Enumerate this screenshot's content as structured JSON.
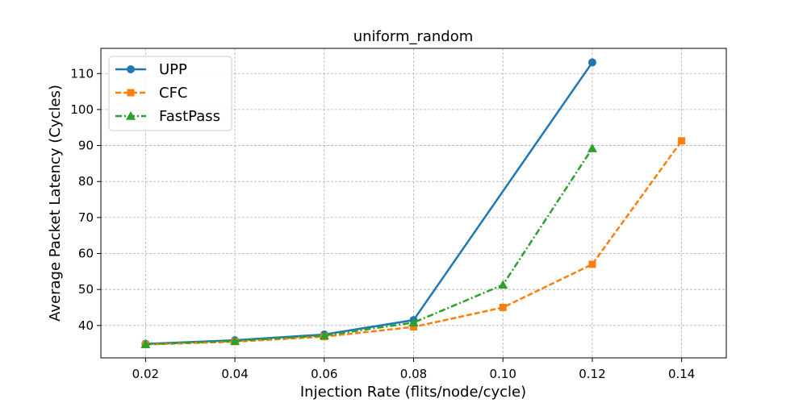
{
  "chart_data": {
    "type": "line",
    "title": "uniform_random",
    "xlabel": "Injection Rate (flits/node/cycle)",
    "ylabel": "Average Packet Latency (Cycles)",
    "xlim": [
      0.01,
      0.15
    ],
    "ylim": [
      31,
      117
    ],
    "xticks": [
      "0.02",
      "0.04",
      "0.06",
      "0.08",
      "0.10",
      "0.12",
      "0.14"
    ],
    "yticks": [
      "40",
      "50",
      "60",
      "70",
      "80",
      "90",
      "100",
      "110"
    ],
    "grid": true,
    "legend_position": "top-left",
    "series": [
      {
        "name": "UPP",
        "color": "#1f77b4",
        "marker": "circle",
        "linestyle": "solid",
        "x": [
          0.02,
          0.04,
          0.06,
          0.08,
          0.12
        ],
        "y": [
          34.9,
          35.9,
          37.5,
          41.5,
          113.1
        ]
      },
      {
        "name": "CFC",
        "color": "#ff7f0e",
        "marker": "square",
        "linestyle": "dashed",
        "x": [
          0.02,
          0.04,
          0.06,
          0.08,
          0.1,
          0.12,
          0.14
        ],
        "y": [
          34.7,
          35.5,
          36.9,
          39.6,
          45.0,
          57.0,
          91.3
        ]
      },
      {
        "name": "FastPass",
        "color": "#2ca02c",
        "marker": "triangle",
        "linestyle": "dashdot",
        "x": [
          0.02,
          0.04,
          0.06,
          0.08,
          0.1,
          0.12
        ],
        "y": [
          34.8,
          35.7,
          37.2,
          40.8,
          51.3,
          89.2
        ]
      }
    ]
  }
}
